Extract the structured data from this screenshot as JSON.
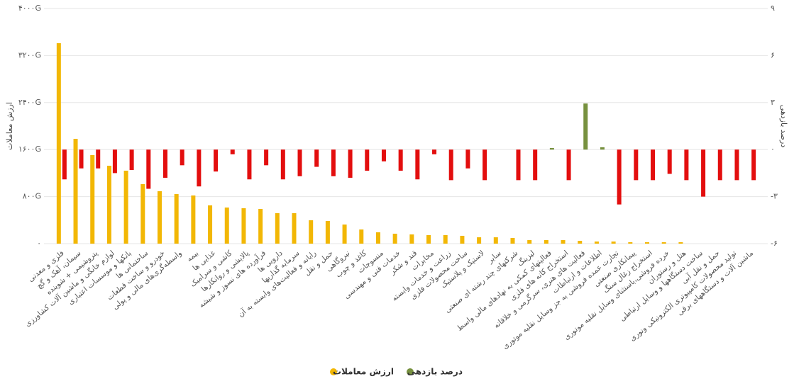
{
  "chart_data": {
    "type": "bar",
    "categories": [
      "فلزی و معدنی",
      "سیمان، آهک و گچ",
      "پتروشیمی + شوینده",
      "لوازم خانگی و ماشین آلات کشاورزی",
      "بانکها و موسسات اعتباری",
      "ساختمانی ها",
      "خودرو و ساخت قطعات",
      "واسطه‌گری‌های مالی و پولی",
      "بیمه",
      "غذایی ها",
      "کاشی و سرامیک",
      "پالایشی و روانکارها",
      "فرآورده های نسوز و شیشه",
      "دارویی ها",
      "سرمایه گذاریها",
      "رایانه و فعالیت‌های وابسته به آن",
      "حمل و نقل",
      "نیروگاهی",
      "کاغذ و چوب",
      "منسوجات",
      "خدمات فنی و مهندسی",
      "قند و شکر",
      "مخابرات",
      "زراعت و خدمات وابسته",
      "ساخت محصولات فلزی",
      "لاستیک و پلاستیک",
      "سایر",
      "شرکتهای چند رشته ای صنعتی",
      "لیزینگ",
      "فعالیتهای کمکی به نهادهای مالی واسط",
      "استخراج کانه های فلزی",
      "فعالیت های هنری، سرگرمی و خلاقانه",
      "اطلاعات و ارتباطات",
      "تجارت عمده فروشی به جز وسایل نقلیه موتوری",
      "پیمانکاری صنعتی",
      "استخراج زغال سنگ",
      "خرده فروشی،باستثنای وسایل نقلیه موتوری",
      "هتل و رستوران",
      "ساخت دستگاهها و وسایل ارتباطی",
      "حمل و نقل آبی",
      "تولید محصولات کامپیوتری الکترونیکی ونوری",
      "ماشین آلات و دستگاههای برقی"
    ],
    "series": [
      {
        "name": "ارزش معاملات",
        "color": "#f2b705",
        "axis": "y",
        "values": [
          3410,
          1783,
          1506,
          1325,
          1241,
          1012,
          892,
          843,
          819,
          651,
          614,
          602,
          590,
          518,
          518,
          398,
          386,
          325,
          241,
          193,
          169,
          157,
          145,
          145,
          133,
          108,
          108,
          96,
          60,
          60,
          60,
          48,
          36,
          36,
          24,
          24,
          24,
          24,
          0,
          0,
          0,
          0
        ]
      },
      {
        "name": "درصد بازدهی",
        "color": "#77913f",
        "negative_color": "#e30e0e",
        "axis": "y2",
        "values": [
          -1.9,
          -1.2,
          -1.2,
          -1.5,
          -1.3,
          -2.5,
          -1.8,
          -1.0,
          -2.35,
          -1.4,
          -0.3,
          -1.9,
          -1.0,
          -1.9,
          -1.7,
          -1.1,
          -1.7,
          -1.8,
          -1.35,
          -0.75,
          -1.35,
          -1.9,
          -0.3,
          -1.95,
          -1.2,
          -1.95,
          0,
          -1.95,
          -1.95,
          0.1,
          -1.95,
          2.94,
          0.15,
          -3.5,
          -1.95,
          -1.95,
          -1.55,
          -1.95,
          -3.0,
          -1.95,
          -1.95,
          -1.95
        ]
      }
    ],
    "ylabel": "ارزش معاملات",
    "y2label": "درصد بازدهی",
    "ylim": [
      0,
      4000
    ],
    "yticks": [
      {
        "value": 0,
        "label": "۰"
      },
      {
        "value": 800,
        "label": "۸۰۰G"
      },
      {
        "value": 1600,
        "label": "۱۶۰۰G"
      },
      {
        "value": 2400,
        "label": "۲۴۰۰G"
      },
      {
        "value": 3200,
        "label": "۳۲۰۰G"
      },
      {
        "value": 4000,
        "label": "۴۰۰۰G"
      }
    ],
    "y2lim": [
      -6,
      9
    ],
    "y2ticks": [
      {
        "value": -6,
        "label": "-۶"
      },
      {
        "value": -3,
        "label": "-۳"
      },
      {
        "value": 0,
        "label": "۰"
      },
      {
        "value": 3,
        "label": "۳"
      },
      {
        "value": 6,
        "label": "۶"
      },
      {
        "value": 9,
        "label": "۹"
      }
    ],
    "grid": true,
    "legend": "bottom"
  }
}
